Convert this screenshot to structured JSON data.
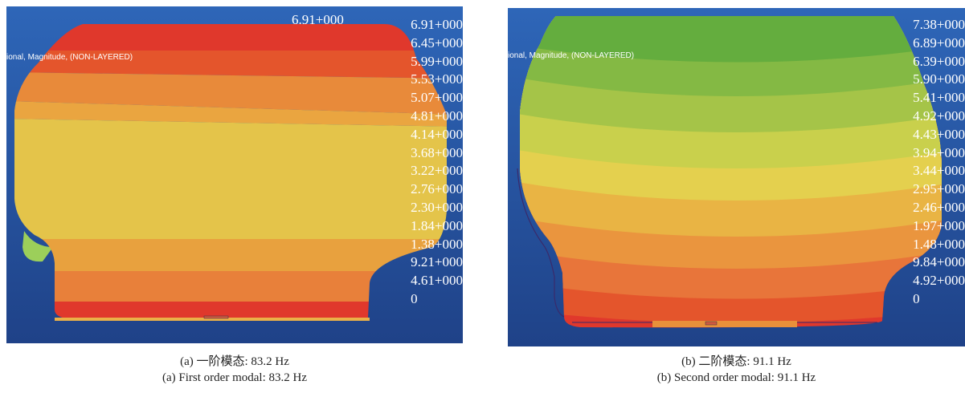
{
  "panel_a": {
    "subtitle": "ional, Magnitude, (NON-LAYERED)",
    "max_label": "6.91+000",
    "legend": [
      "6.91+000",
      "6.45+000",
      "5.99+000",
      "5.53+000",
      "5.07+000",
      "4.81+000",
      "4.14+000",
      "3.68+000",
      "3.22+000",
      "2.76+000",
      "2.30+000",
      "1.84+000",
      "1.38+000",
      "9.21+000",
      "4.61+000",
      "0"
    ],
    "caption_cn": "(a) 一阶模态: 83.2 Hz",
    "caption_en": "(a) First order modal: 83.2 Hz"
  },
  "panel_b": {
    "subtitle": "ional, Magnitude, (NON-LAYERED)",
    "legend": [
      "7.38+000",
      "6.89+000",
      "6.39+000",
      "5.90+000",
      "5.41+000",
      "4.92+000",
      "4.43+000",
      "3.94+000",
      "3.44+000",
      "2.95+000",
      "2.46+000",
      "1.97+000",
      "1.48+000",
      "9.84+000",
      "4.92+000",
      "0"
    ],
    "caption_cn": "(b) 二阶模态: 91.1 Hz",
    "caption_en": "(b) Second order modal: 91.1 Hz"
  },
  "colors": {
    "background_top": "#2d63b4",
    "background_bottom": "#1d3f86",
    "red": "#e0382c",
    "orange_red": "#e4552c",
    "orange": "#e88a3a",
    "light_orange": "#eaa540",
    "yellow_orange": "#e8c048",
    "yellow": "#e4cb4c",
    "pale_yellow": "#e2da52",
    "yellow_green": "#c7d04c",
    "light_green": "#a7c648",
    "green": "#86bb44",
    "dark_green": "#5fae3c"
  }
}
